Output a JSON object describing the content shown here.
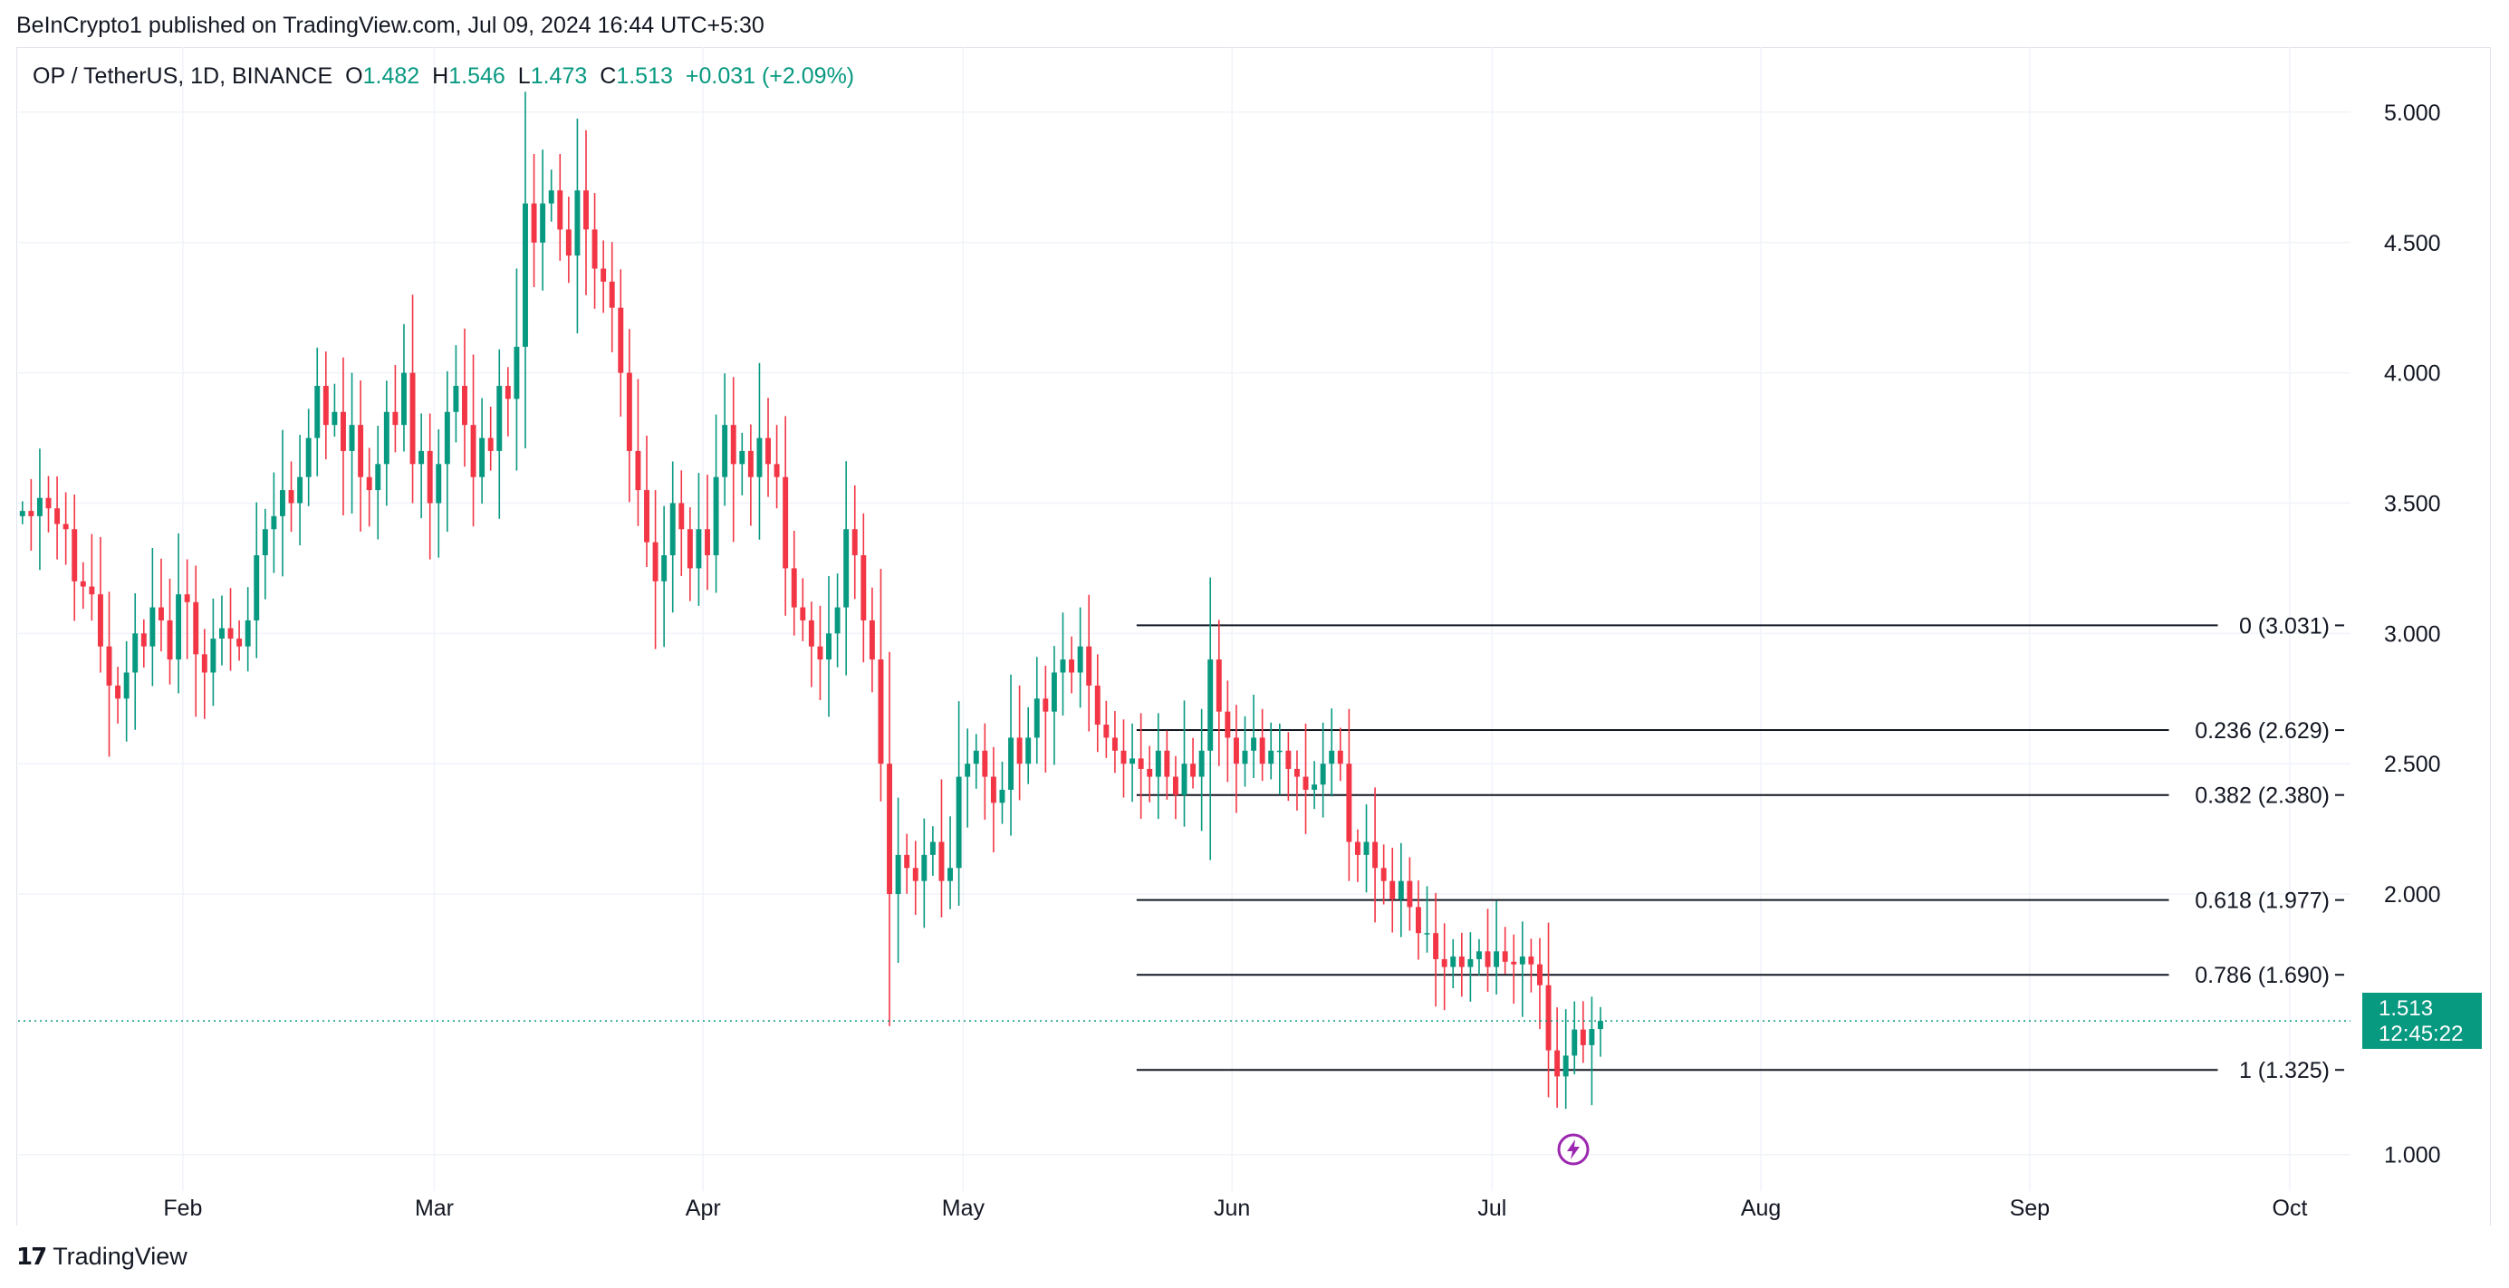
{
  "header": {
    "publisher_line": "BeInCrypto1 published on TradingView.com, Jul 09, 2024 16:44 UTC+5:30"
  },
  "legend": {
    "symbol": "OP / TetherUS, 1D, BINANCE",
    "o_label": "O",
    "o_value": "1.482",
    "h_label": "H",
    "h_value": "1.546",
    "l_label": "L",
    "l_value": "1.473",
    "c_label": "C",
    "c_value": "1.513",
    "change": "+0.031 (+2.09%)"
  },
  "price_badge": {
    "price": "1.513",
    "countdown": "12:45:22"
  },
  "branding": {
    "name": "TradingView"
  },
  "colors": {
    "up": "#089981",
    "down": "#f23645",
    "grid": "#f0f3fa",
    "text": "#131722",
    "event": "#9c27b0"
  },
  "chart_data": {
    "type": "candlestick",
    "symbol": "OP / TetherUS",
    "interval": "1D",
    "exchange": "BINANCE",
    "ylim": [
      0.86,
      5.25
    ],
    "y_ticks": [
      "5.000",
      "4.500",
      "4.000",
      "3.500",
      "3.000",
      "2.500",
      "2.000",
      "1.000"
    ],
    "x_ticks": [
      "Feb",
      "Mar",
      "Apr",
      "May",
      "Jun",
      "Jul",
      "Aug",
      "Sep",
      "Oct"
    ],
    "x_range": [
      "2024-01-13",
      "2024-10-08"
    ],
    "grid": true,
    "current_price": 1.513,
    "closes": [
      3.47,
      3.45,
      3.52,
      3.48,
      3.42,
      3.4,
      3.2,
      3.18,
      3.15,
      2.95,
      2.8,
      2.75,
      2.85,
      3.0,
      2.95,
      3.1,
      3.05,
      2.9,
      3.15,
      3.12,
      2.92,
      2.85,
      2.98,
      3.02,
      2.98,
      2.95,
      3.05,
      3.3,
      3.4,
      3.45,
      3.55,
      3.5,
      3.6,
      3.75,
      3.95,
      3.8,
      3.85,
      3.7,
      3.8,
      3.6,
      3.55,
      3.65,
      3.85,
      3.8,
      4.0,
      3.65,
      3.7,
      3.5,
      3.65,
      3.85,
      3.95,
      3.8,
      3.6,
      3.75,
      3.7,
      3.95,
      3.9,
      4.1,
      4.65,
      4.5,
      4.65,
      4.7,
      4.55,
      4.45,
      4.7,
      4.55,
      4.4,
      4.35,
      4.25,
      4.0,
      3.7,
      3.55,
      3.35,
      3.2,
      3.3,
      3.5,
      3.4,
      3.25,
      3.4,
      3.3,
      3.6,
      3.8,
      3.65,
      3.7,
      3.6,
      3.75,
      3.65,
      3.6,
      3.25,
      3.1,
      3.05,
      2.95,
      2.9,
      3.0,
      3.1,
      3.4,
      3.3,
      3.05,
      2.9,
      2.5,
      2.0,
      2.15,
      2.1,
      2.05,
      2.15,
      2.2,
      2.05,
      2.1,
      2.45,
      2.5,
      2.55,
      2.45,
      2.35,
      2.4,
      2.6,
      2.5,
      2.6,
      2.75,
      2.7,
      2.85,
      2.9,
      2.85,
      2.95,
      2.8,
      2.65,
      2.6,
      2.55,
      2.5,
      2.52,
      2.48,
      2.45,
      2.55,
      2.45,
      2.38,
      2.5,
      2.45,
      2.55,
      2.9,
      2.7,
      2.6,
      2.5,
      2.55,
      2.6,
      2.5,
      2.55,
      2.55,
      2.48,
      2.45,
      2.4,
      2.42,
      2.5,
      2.55,
      2.5,
      2.2,
      2.15,
      2.2,
      2.1,
      2.05,
      1.98,
      2.05,
      1.95,
      1.85,
      1.85,
      1.75,
      1.72,
      1.76,
      1.72,
      1.75,
      1.78,
      1.72,
      1.78,
      1.74,
      1.73,
      1.76,
      1.73,
      1.65,
      1.4,
      1.3,
      1.38,
      1.48,
      1.42,
      1.482,
      1.513
    ],
    "fibonacci_retracement": {
      "start_date": "2024-05-21",
      "levels": [
        {
          "ratio": "0",
          "price": 3.031,
          "label": "0 (3.031)"
        },
        {
          "ratio": "0.236",
          "price": 2.629,
          "label": "0.236 (2.629)"
        },
        {
          "ratio": "0.382",
          "price": 2.38,
          "label": "0.382 (2.380)"
        },
        {
          "ratio": "0.618",
          "price": 1.977,
          "label": "0.618 (1.977)"
        },
        {
          "ratio": "0.786",
          "price": 1.69,
          "label": "0.786 (1.690)"
        },
        {
          "ratio": "1",
          "price": 1.325,
          "label": "1 (1.325)"
        }
      ]
    }
  }
}
